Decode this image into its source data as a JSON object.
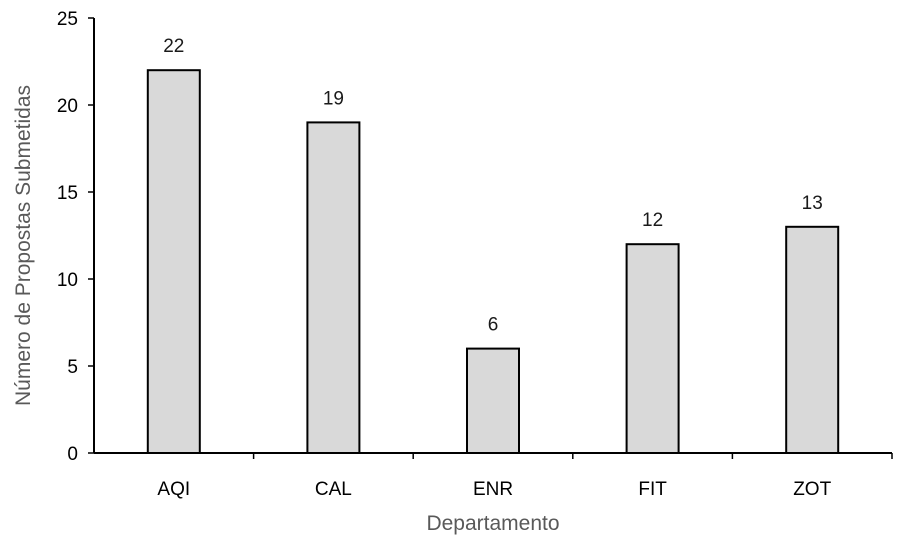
{
  "chart_data": {
    "type": "bar",
    "title": "",
    "xlabel": "Departamento",
    "ylabel": "Número de Propostas Submetidas",
    "categories": [
      "AQI",
      "CAL",
      "ENR",
      "FIT",
      "ZOT"
    ],
    "values": [
      22,
      19,
      6,
      12,
      13
    ],
    "data_labels": [
      "22",
      "19",
      "6",
      "12",
      "13"
    ],
    "ylim": [
      0,
      25
    ],
    "yticks": [
      0,
      5,
      10,
      15,
      20,
      25
    ],
    "ytick_labels": [
      "0",
      "5",
      "10",
      "15",
      "20",
      "25"
    ],
    "grid": false,
    "legend": "none",
    "colors": {
      "bar_fill": "#d9d9d9",
      "bar_stroke": "#000000",
      "axis_title": "#595959"
    }
  }
}
